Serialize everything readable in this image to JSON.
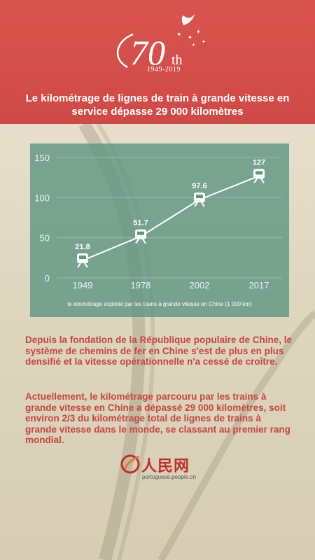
{
  "header": {
    "logo_number": "70",
    "logo_suffix": "th",
    "logo_years": "1949-2019",
    "headline": "Le kilométrage de lignes de train à grande vitesse en service dépasse 29 000 kilomètres"
  },
  "chart_data": {
    "type": "line",
    "x": [
      "1949",
      "1978",
      "2002",
      "2017"
    ],
    "values": [
      21.8,
      51.7,
      97.6,
      127
    ],
    "value_labels": [
      "21.8",
      "51.7",
      "97.6",
      "127"
    ],
    "ylim": [
      0,
      150
    ],
    "yticks": [
      "0",
      "50",
      "100",
      "150"
    ],
    "grid": true,
    "caption": "le kilométrage exploité par les trains à grande vitesse en Chine (1 000 km)",
    "marker_icon": "train-icon",
    "colors": {
      "line": "#ffffff",
      "panel": "#60967f"
    }
  },
  "body": {
    "paragraph1": "Depuis la fondation de la République populaire de Chine, le système de chemins de fer en Chine s'est de plus en plus densifié et la vitesse opérationnelle n'a cessé de croître.",
    "paragraph2": "Actuellement, le kilométrage parcouru par les trains à grande vitesse en Chine a dépassé 29 000 kilomètres, soit environ 2/3 du kilométrage total de lignes de trains à grande vitesse dans le monde, se classant au premier rang mondial."
  },
  "footer": {
    "brand": "人民网",
    "url": "portuguese.people.cn",
    "logo_icon": "people-daily-logo-icon"
  },
  "colors": {
    "header_red": "#d9544f",
    "text_red": "#c8443e"
  }
}
